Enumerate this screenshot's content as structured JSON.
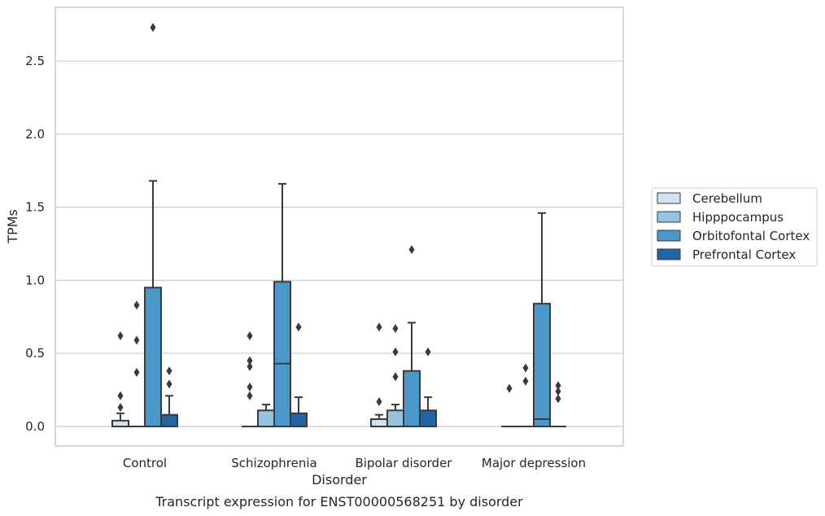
{
  "chart_data": {
    "type": "box",
    "xlabel": "Disorder",
    "ylabel": "TPMs",
    "caption": "Transcript expression for ENST00000568251 by disorder",
    "categories": [
      "Control",
      "Schizophrenia",
      "Bipolar disorder",
      "Major depression"
    ],
    "ylim": [
      -0.13,
      2.87
    ],
    "yticks": [
      0.0,
      0.5,
      1.0,
      1.5,
      2.0,
      2.5
    ],
    "ytick_labels": [
      "0.0",
      "0.5",
      "1.0",
      "1.5",
      "2.0",
      "2.5"
    ],
    "grid": "horizontal",
    "legend_position": "right",
    "series": [
      {
        "name": "Cerebellum",
        "color": "#d0e1f2",
        "boxes": [
          {
            "q1": 0.0,
            "median": 0.0,
            "q3": 0.04,
            "whislo": 0.0,
            "whishi": 0.09,
            "fliers": [
              0.13,
              0.21,
              0.62
            ]
          },
          {
            "q1": 0.0,
            "median": 0.0,
            "q3": 0.0,
            "whislo": 0.0,
            "whishi": 0.0,
            "fliers": [
              0.21,
              0.27,
              0.41,
              0.45,
              0.62
            ]
          },
          {
            "q1": 0.0,
            "median": 0.0,
            "q3": 0.05,
            "whislo": 0.0,
            "whishi": 0.08,
            "fliers": [
              0.17,
              0.68
            ]
          },
          {
            "q1": 0.0,
            "median": 0.0,
            "q3": 0.0,
            "whislo": 0.0,
            "whishi": 0.0,
            "fliers": [
              0.26
            ]
          }
        ]
      },
      {
        "name": "Hipppocampus",
        "color": "#94c4df",
        "boxes": [
          {
            "q1": 0.0,
            "median": 0.0,
            "q3": 0.0,
            "whislo": 0.0,
            "whishi": 0.0,
            "fliers": [
              0.37,
              0.59,
              0.83
            ]
          },
          {
            "q1": 0.0,
            "median": 0.0,
            "q3": 0.11,
            "whislo": 0.0,
            "whishi": 0.15,
            "fliers": []
          },
          {
            "q1": 0.0,
            "median": 0.0,
            "q3": 0.11,
            "whislo": 0.0,
            "whishi": 0.15,
            "fliers": [
              0.34,
              0.51,
              0.67
            ]
          },
          {
            "q1": 0.0,
            "median": 0.0,
            "q3": 0.0,
            "whislo": 0.0,
            "whishi": 0.0,
            "fliers": [
              0.31,
              0.4
            ]
          }
        ]
      },
      {
        "name": "Orbitofontal Cortex",
        "color": "#4a98c9",
        "boxes": [
          {
            "q1": 0.0,
            "median": 0.0,
            "q3": 0.95,
            "whislo": 0.0,
            "whishi": 1.68,
            "fliers": [
              2.73
            ]
          },
          {
            "q1": 0.0,
            "median": 0.43,
            "q3": 0.99,
            "whislo": 0.0,
            "whishi": 1.66,
            "fliers": []
          },
          {
            "q1": 0.0,
            "median": 0.0,
            "q3": 0.38,
            "whislo": 0.0,
            "whishi": 0.71,
            "fliers": [
              1.21
            ]
          },
          {
            "q1": 0.0,
            "median": 0.05,
            "q3": 0.84,
            "whislo": 0.0,
            "whishi": 1.46,
            "fliers": []
          }
        ]
      },
      {
        "name": "Prefrontal Cortex",
        "color": "#2264a6",
        "boxes": [
          {
            "q1": 0.0,
            "median": 0.0,
            "q3": 0.08,
            "whislo": 0.0,
            "whishi": 0.21,
            "fliers": [
              0.29,
              0.38
            ]
          },
          {
            "q1": 0.0,
            "median": 0.0,
            "q3": 0.09,
            "whislo": 0.0,
            "whishi": 0.2,
            "fliers": [
              0.68
            ]
          },
          {
            "q1": 0.0,
            "median": 0.0,
            "q3": 0.11,
            "whislo": 0.0,
            "whishi": 0.2,
            "fliers": [
              0.51
            ]
          },
          {
            "q1": 0.0,
            "median": 0.0,
            "q3": 0.0,
            "whislo": 0.0,
            "whishi": 0.0,
            "fliers": [
              0.19,
              0.24,
              0.28
            ]
          }
        ]
      }
    ]
  }
}
